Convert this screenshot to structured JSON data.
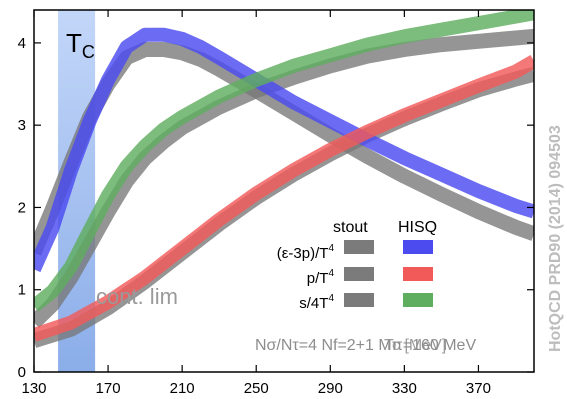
{
  "chart_data": {
    "type": "line",
    "xlim": [
      130,
      400
    ],
    "ylim": [
      0,
      4.4
    ],
    "x_ticks": [
      130,
      170,
      210,
      250,
      290,
      330,
      370
    ],
    "y_ticks": [
      0,
      1,
      2,
      3,
      4
    ],
    "grid": false,
    "legend": {
      "placement": "bottom-right",
      "headers": [
        "stout",
        "HISQ"
      ]
    },
    "tc_band": {
      "label": "T",
      "label_sub": "C",
      "x_range": [
        143,
        163
      ]
    },
    "annotations": {
      "cont_lim": "cont. lim",
      "params": "Nσ/Nτ=4 Nf=2+1 Mπ=160 MeV",
      "params_overlay": "Tc [MeV]",
      "watermark": "HotQCD PRD90 (2014) 094503"
    },
    "series": [
      {
        "name": "(ε-3p)/T⁴",
        "legend_label": "(ε-3p)/T",
        "legend_sup": "4",
        "hisq_color": "#4b4bf0",
        "stout_color": "#777777",
        "hisq": {
          "x": [
            130,
            140,
            150,
            160,
            170,
            180,
            190,
            200,
            210,
            220,
            230,
            250,
            270,
            290,
            310,
            330,
            350,
            370,
            390,
            400
          ],
          "y": [
            1.25,
            1.75,
            2.45,
            3.05,
            3.55,
            3.95,
            4.1,
            4.1,
            4.05,
            3.95,
            3.82,
            3.55,
            3.28,
            3.05,
            2.82,
            2.6,
            2.4,
            2.2,
            2.02,
            1.95
          ]
        },
        "stout": {
          "x": [
            130,
            140,
            150,
            160,
            170,
            180,
            190,
            200,
            210,
            220,
            230,
            250,
            270,
            290,
            310,
            330,
            350,
            370,
            390,
            400
          ],
          "y": [
            1.45,
            1.98,
            2.55,
            3.1,
            3.5,
            3.82,
            3.92,
            3.92,
            3.88,
            3.8,
            3.68,
            3.42,
            3.15,
            2.88,
            2.62,
            2.38,
            2.16,
            1.95,
            1.76,
            1.68
          ]
        }
      },
      {
        "name": "p/T⁴",
        "legend_label": "p/T",
        "legend_sup": "4",
        "hisq_color": "#f25a5a",
        "stout_color": "#777777",
        "hisq": {
          "x": [
            130,
            150,
            170,
            190,
            210,
            230,
            250,
            270,
            290,
            310,
            330,
            350,
            370,
            390,
            400
          ],
          "y": [
            0.45,
            0.6,
            0.85,
            1.15,
            1.5,
            1.85,
            2.17,
            2.45,
            2.7,
            2.92,
            3.12,
            3.3,
            3.48,
            3.65,
            3.78
          ]
        },
        "stout": {
          "x": [
            130,
            150,
            170,
            190,
            210,
            230,
            250,
            270,
            290,
            310,
            330,
            350,
            370,
            390,
            400
          ],
          "y": [
            0.38,
            0.52,
            0.78,
            1.1,
            1.45,
            1.8,
            2.12,
            2.4,
            2.65,
            2.88,
            3.08,
            3.26,
            3.43,
            3.56,
            3.62
          ]
        }
      },
      {
        "name": "s/4T⁴",
        "legend_label": "s/4T",
        "legend_sup": "4",
        "hisq_color": "#5fad5f",
        "stout_color": "#777777",
        "hisq": {
          "x": [
            130,
            140,
            150,
            160,
            170,
            180,
            190,
            200,
            210,
            230,
            250,
            270,
            290,
            310,
            330,
            350,
            370,
            390,
            400
          ],
          "y": [
            0.8,
            0.98,
            1.28,
            1.72,
            2.15,
            2.5,
            2.75,
            2.95,
            3.1,
            3.35,
            3.55,
            3.72,
            3.85,
            3.98,
            4.08,
            4.16,
            4.24,
            4.32,
            4.36
          ]
        },
        "stout": {
          "x": [
            130,
            140,
            150,
            160,
            170,
            180,
            190,
            200,
            210,
            230,
            250,
            270,
            290,
            310,
            330,
            350,
            370,
            390,
            400
          ],
          "y": [
            0.6,
            0.82,
            1.15,
            1.55,
            1.95,
            2.32,
            2.6,
            2.8,
            2.97,
            3.22,
            3.42,
            3.58,
            3.72,
            3.84,
            3.92,
            3.98,
            4.02,
            4.06,
            4.08
          ]
        }
      }
    ]
  }
}
